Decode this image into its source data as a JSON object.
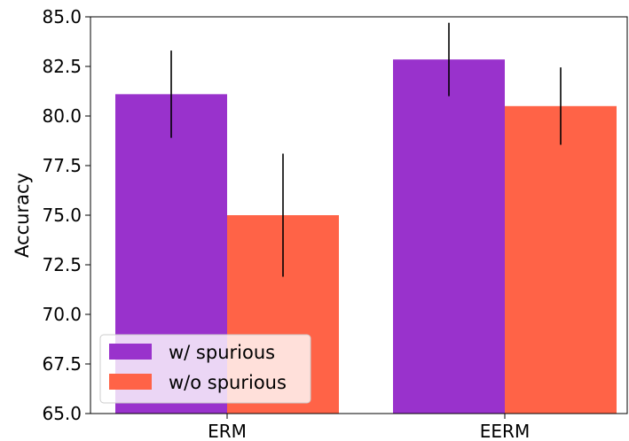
{
  "chart_data": {
    "type": "bar",
    "categories": [
      "ERM",
      "EERM"
    ],
    "series": [
      {
        "name": "w/ spurious",
        "values": [
          81.1,
          82.85
        ],
        "errors": [
          2.2,
          1.85
        ],
        "color": "#9932CC"
      },
      {
        "name": "w/o spurious",
        "values": [
          75.0,
          80.5
        ],
        "errors": [
          3.1,
          1.95
        ],
        "color": "#FF6347"
      }
    ],
    "ylabel": "Accuracy",
    "xlabel": "",
    "ylim": [
      65.0,
      85.0
    ],
    "yticks": [
      "65.0",
      "67.5",
      "70.0",
      "72.5",
      "75.0",
      "77.5",
      "80.0",
      "82.5",
      "85.0"
    ],
    "legend_position": "lower-left",
    "grid": false
  }
}
